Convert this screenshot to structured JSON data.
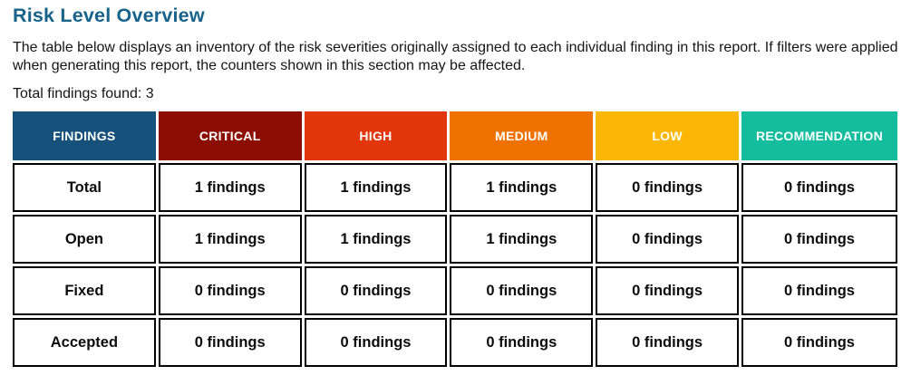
{
  "page": {
    "title": "Risk Level Overview",
    "description": "The table below displays an inventory of the risk severities originally assigned to each individual finding in this report. If filters were applied when generating this report, the counters shown in this section may be affected.",
    "total_findings": "Total findings found: 3"
  },
  "colors": {
    "title": "#17638a",
    "findings_header": "#15517a",
    "critical_header": "#8b0d04",
    "high_header": "#e2360c",
    "medium_header": "#ef7100",
    "low_header": "#fcb606",
    "recommendation_header": "#13bd9e",
    "body_text": "#0c0c0c",
    "cell_border": "#000000"
  },
  "table": {
    "columns": [
      {
        "label": "FINDINGS",
        "color": "#15517a"
      },
      {
        "label": "CRITICAL",
        "color": "#8b0d04"
      },
      {
        "label": "HIGH",
        "color": "#e2360c"
      },
      {
        "label": "MEDIUM",
        "color": "#ef7100"
      },
      {
        "label": "LOW",
        "color": "#fcb606"
      },
      {
        "label": "RECOMMENDATION",
        "color": "#13bd9e"
      }
    ],
    "rows": [
      {
        "label": "Total",
        "cells": [
          "1 findings",
          "1 findings",
          "1 findings",
          "0 findings",
          "0 findings"
        ]
      },
      {
        "label": "Open",
        "cells": [
          "1 findings",
          "1 findings",
          "1 findings",
          "0 findings",
          "0 findings"
        ]
      },
      {
        "label": "Fixed",
        "cells": [
          "0 findings",
          "0 findings",
          "0 findings",
          "0 findings",
          "0 findings"
        ]
      },
      {
        "label": "Accepted",
        "cells": [
          "0 findings",
          "0 findings",
          "0 findings",
          "0 findings",
          "0 findings"
        ]
      }
    ]
  }
}
